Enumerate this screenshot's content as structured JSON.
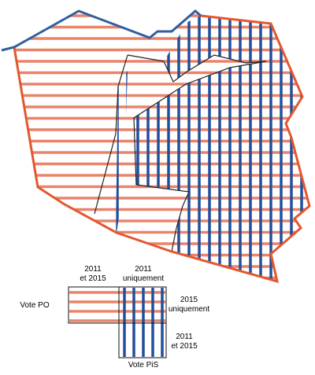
{
  "colors": {
    "po": "#e9846a",
    "pis": "#234f9a",
    "border": "#e4572e",
    "coast": "#2f5f9f",
    "divider": "#222222"
  },
  "legend": {
    "label_2011_2015_top": [
      "2011",
      "et 2015"
    ],
    "label_2011_only": [
      "2011",
      "uniquement"
    ],
    "label_2015_only": [
      "2015",
      "uniquement"
    ],
    "label_2011_2015_right": [
      "2011",
      "et 2015"
    ],
    "label_vote_po": "Vote PO",
    "label_vote_pis": "Vote PiS"
  }
}
